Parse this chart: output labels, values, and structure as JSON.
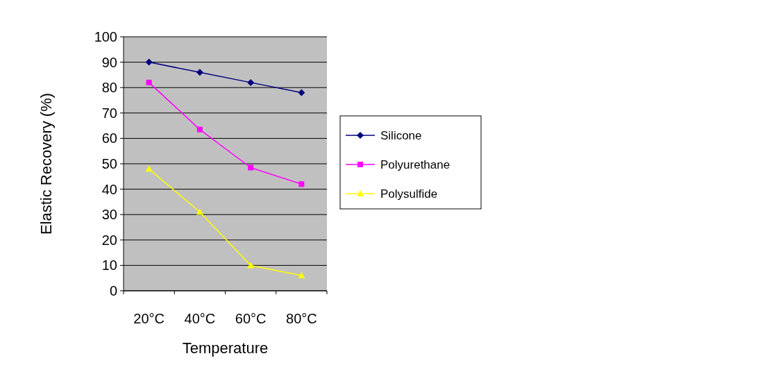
{
  "chart_data": {
    "type": "line",
    "xlabel": "Temperature",
    "ylabel": "Elastic Recovery (%)",
    "categories": [
      "20°C",
      "40°C",
      "60°C",
      "80°C"
    ],
    "series": [
      {
        "name": "Silicone",
        "color": "#000080",
        "marker": "diamond",
        "values": [
          90,
          86,
          82,
          78
        ]
      },
      {
        "name": "Polyurethane",
        "color": "#ff00ff",
        "marker": "square",
        "values": [
          82,
          63.5,
          48.5,
          42
        ]
      },
      {
        "name": "Polysulfide",
        "color": "#ffff00",
        "marker": "triangle",
        "values": [
          48,
          31,
          10,
          6
        ]
      }
    ],
    "ylim": [
      0,
      100
    ],
    "yticks": [
      0,
      10,
      20,
      30,
      40,
      50,
      60,
      70,
      80,
      90,
      100
    ],
    "grid": "y",
    "legend": "right"
  }
}
